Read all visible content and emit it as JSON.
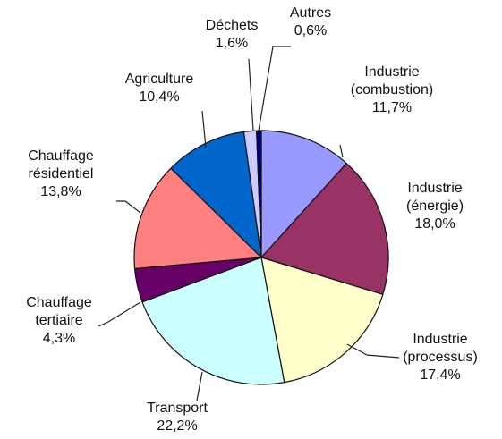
{
  "chart_data": {
    "type": "pie",
    "title": "",
    "start_angle_deg": 0,
    "direction": "clockwise",
    "slices": [
      {
        "lines": [
          "Industrie",
          "(combustion)"
        ],
        "value": 11.7,
        "value_label": "11,7%",
        "color": "#9999ff"
      },
      {
        "lines": [
          "Industrie",
          "(énergie)"
        ],
        "value": 18.0,
        "value_label": "18,0%",
        "color": "#993366"
      },
      {
        "lines": [
          "Industrie",
          "(processus)"
        ],
        "value": 17.4,
        "value_label": "17,4%",
        "color": "#ffffcc"
      },
      {
        "lines": [
          "Transport"
        ],
        "value": 22.2,
        "value_label": "22,2%",
        "color": "#ccffff"
      },
      {
        "lines": [
          "Chauffage",
          "tertiaire"
        ],
        "value": 4.3,
        "value_label": "4,3%",
        "color": "#660066"
      },
      {
        "lines": [
          "Chauffage",
          "résidentiel"
        ],
        "value": 13.8,
        "value_label": "13,8%",
        "color": "#ff8080"
      },
      {
        "lines": [
          "Agriculture"
        ],
        "value": 10.4,
        "value_label": "10,4%",
        "color": "#0066cc"
      },
      {
        "lines": [
          "Déchets"
        ],
        "value": 1.6,
        "value_label": "1,6%",
        "color": "#ccccff"
      },
      {
        "lines": [
          "Autres"
        ],
        "value": 0.6,
        "value_label": "0,6%",
        "color": "#000080"
      }
    ]
  }
}
